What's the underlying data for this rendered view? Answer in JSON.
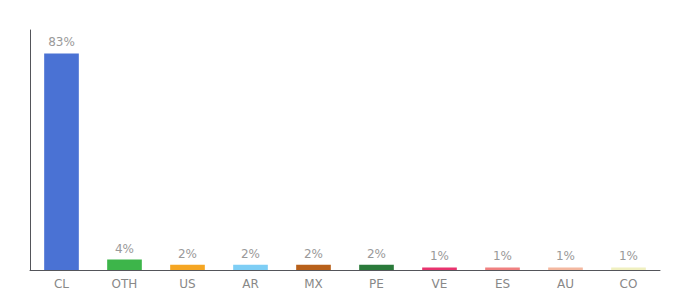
{
  "chart_data": {
    "type": "bar",
    "categories": [
      "CL",
      "OTH",
      "US",
      "AR",
      "MX",
      "PE",
      "VE",
      "ES",
      "AU",
      "CO"
    ],
    "values": [
      83,
      4,
      2,
      2,
      2,
      2,
      1,
      1,
      1,
      1
    ],
    "value_labels": [
      "83%",
      "4%",
      "2%",
      "2%",
      "2%",
      "2%",
      "1%",
      "1%",
      "1%",
      "1%"
    ],
    "data_labels": true,
    "colors": [
      "#4a72d4",
      "#3db54a",
      "#f5a623",
      "#7ecef5",
      "#b8601a",
      "#2a7a3a",
      "#e8336e",
      "#f08080",
      "#f4b8a0",
      "#f0f0c0"
    ],
    "ylim": [
      0,
      92
    ],
    "tick_labels": "x",
    "grid": false
  }
}
